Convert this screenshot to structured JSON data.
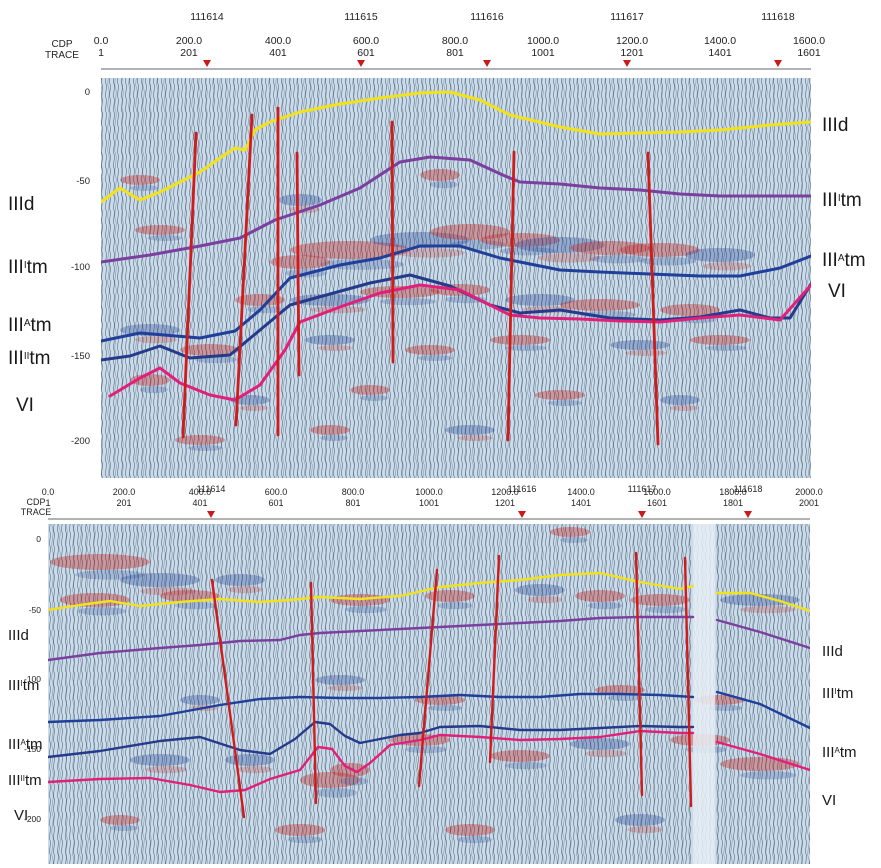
{
  "panels": [
    {
      "id": "top",
      "cdp_label": "CDP",
      "trace_label": "TRACE",
      "cdp_ticks": [
        {
          "cdp": "0.0",
          "trace": "1"
        },
        {
          "cdp": "200.0",
          "trace": "201"
        },
        {
          "cdp": "400.0",
          "trace": "401"
        },
        {
          "cdp": "600.0",
          "trace": "601"
        },
        {
          "cdp": "800.0",
          "trace": "801"
        },
        {
          "cdp": "1000.0",
          "trace": "1001"
        },
        {
          "cdp": "1200.0",
          "trace": "1201"
        },
        {
          "cdp": "1400.0",
          "trace": "1401"
        },
        {
          "cdp": "1600.0",
          "trace": "1601"
        }
      ],
      "well_markers": [
        "111614",
        "111615",
        "111616",
        "111617",
        "111618"
      ],
      "depth_ticks": [
        "0",
        "-50",
        "-100",
        "-150",
        "-200"
      ],
      "left_labels": [
        {
          "main": "IIId",
          "sup": "",
          "tail": ""
        },
        {
          "main": "III",
          "sup": "I",
          "tail": "tm"
        },
        {
          "main": "III",
          "sup": "A",
          "tail": "tm"
        },
        {
          "main": "III",
          "sup": "II",
          "tail": "tm"
        },
        {
          "main": "VI",
          "sup": "",
          "tail": ""
        }
      ],
      "right_labels": [
        {
          "main": "IIId",
          "sup": "",
          "tail": ""
        },
        {
          "main": "III",
          "sup": "I",
          "tail": "tm"
        },
        {
          "main": "III",
          "sup": "A",
          "tail": "tm"
        },
        {
          "main": "VI",
          "sup": "",
          "tail": ""
        }
      ]
    },
    {
      "id": "bottom",
      "cdp_label": "CDP",
      "trace_label": "TRACE",
      "cdp_ticks": [
        {
          "cdp": "0.0",
          "trace": "1"
        },
        {
          "cdp": "200.0",
          "trace": "201"
        },
        {
          "cdp": "400.0",
          "trace": "401"
        },
        {
          "cdp": "600.0",
          "trace": "601"
        },
        {
          "cdp": "800.0",
          "trace": "801"
        },
        {
          "cdp": "1000.0",
          "trace": "1001"
        },
        {
          "cdp": "1200.0",
          "trace": "1201"
        },
        {
          "cdp": "1400.0",
          "trace": "1401"
        },
        {
          "cdp": "1600.0",
          "trace": "1601"
        },
        {
          "cdp": "1800.0",
          "trace": "1801"
        },
        {
          "cdp": "2000.0",
          "trace": "2001"
        }
      ],
      "well_markers": [
        "111614",
        "111616",
        "111617",
        "111618"
      ],
      "depth_ticks": [
        "0",
        "-50",
        "-100",
        "-150",
        "-200"
      ],
      "left_labels": [
        {
          "main": "IIId",
          "sup": "",
          "tail": ""
        },
        {
          "main": "III",
          "sup": "I",
          "tail": "tm"
        },
        {
          "main": "III",
          "sup": "A",
          "tail": "tm"
        },
        {
          "main": "III",
          "sup": "II",
          "tail": "tm"
        },
        {
          "main": "VI",
          "sup": "",
          "tail": ""
        }
      ],
      "right_labels": [
        {
          "main": "IIId",
          "sup": "",
          "tail": ""
        },
        {
          "main": "III",
          "sup": "I",
          "tail": "tm"
        },
        {
          "main": "III",
          "sup": "A",
          "tail": "tm"
        },
        {
          "main": "VI",
          "sup": "",
          "tail": ""
        }
      ]
    }
  ],
  "horizon_colors": {
    "IIId": "#f2e21b",
    "IIIItm": "#7b3fa0",
    "IIIAtm": "#1f3f9a",
    "IIIIItm": "#263a8c",
    "VI": "#e0207a"
  },
  "fault_color": "#d11a1a",
  "marker_color": "#cc1a1a",
  "section_background": "#c9dced"
}
